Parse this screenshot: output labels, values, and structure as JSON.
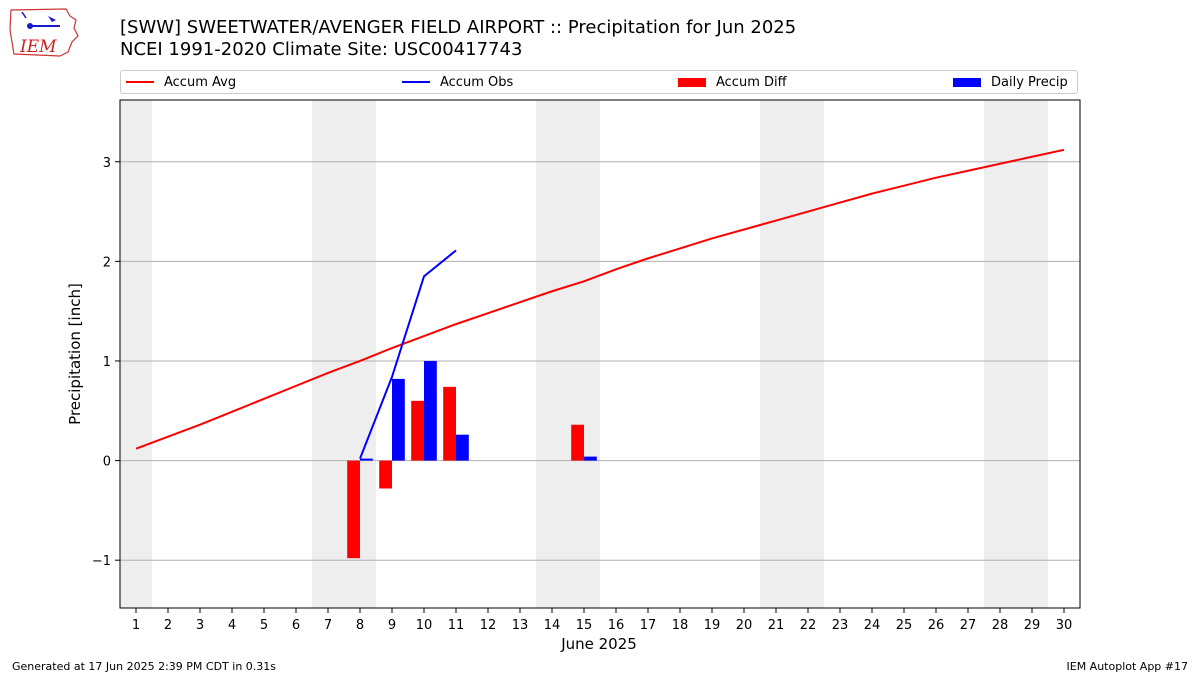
{
  "header": {
    "logo_text": "IEM",
    "title_line1": "[SWW] SWEETWATER/AVENGER FIELD AIRPORT :: Precipitation for Jun 2025",
    "title_line2": "NCEI 1991-2020 Climate Site: USC00417743"
  },
  "legend": [
    {
      "label": "Accum Avg",
      "kind": "line",
      "color": "#ff0000"
    },
    {
      "label": "Accum Obs",
      "kind": "line",
      "color": "#0000ff"
    },
    {
      "label": "Accum Diff",
      "kind": "patch",
      "color": "#ff0000"
    },
    {
      "label": "Daily Precip",
      "kind": "patch",
      "color": "#0000ff"
    }
  ],
  "chart_data": {
    "type": "bar",
    "title": "[SWW] SWEETWATER/AVENGER FIELD AIRPORT :: Precipitation for Jun 2025",
    "subtitle": "NCEI 1991-2020 Climate Site: USC00417743",
    "xlabel": "June 2025",
    "ylabel": "Precipitation [inch]",
    "x": [
      1,
      2,
      3,
      4,
      5,
      6,
      7,
      8,
      9,
      10,
      11,
      12,
      13,
      14,
      15,
      16,
      17,
      18,
      19,
      20,
      21,
      22,
      23,
      24,
      25,
      26,
      27,
      28,
      29,
      30
    ],
    "xlim": [
      0.5,
      30.5
    ],
    "ylim": [
      -1.48,
      3.62
    ],
    "yticks": [
      -1,
      0,
      1,
      2,
      3
    ],
    "grid": "y",
    "weekend_days": [
      1,
      7,
      8,
      14,
      15,
      21,
      22,
      28,
      29
    ],
    "series": [
      {
        "name": "Accum Avg",
        "kind": "line",
        "color": "#ff0000",
        "x": [
          1,
          2,
          3,
          4,
          5,
          6,
          7,
          8,
          9,
          10,
          11,
          12,
          13,
          14,
          15,
          16,
          17,
          18,
          19,
          20,
          21,
          22,
          23,
          24,
          25,
          26,
          27,
          28,
          29,
          30
        ],
        "values": [
          0.12,
          0.24,
          0.36,
          0.49,
          0.62,
          0.75,
          0.88,
          1.0,
          1.13,
          1.25,
          1.37,
          1.48,
          1.59,
          1.7,
          1.8,
          1.92,
          2.03,
          2.13,
          2.23,
          2.32,
          2.41,
          2.5,
          2.59,
          2.68,
          2.76,
          2.84,
          2.91,
          2.98,
          3.05,
          3.12
        ]
      },
      {
        "name": "Accum Obs",
        "kind": "line",
        "color": "#0000ff",
        "x": [
          8,
          9,
          10,
          11
        ],
        "values": [
          0.02,
          0.84,
          1.85,
          2.11
        ]
      },
      {
        "name": "Accum Diff",
        "kind": "bar",
        "color": "#ff0000",
        "x": [
          8,
          9,
          10,
          11,
          15
        ],
        "values": [
          -0.98,
          -0.28,
          0.6,
          0.74,
          0.36
        ]
      },
      {
        "name": "Daily Precip",
        "kind": "bar",
        "color": "#0000ff",
        "x": [
          8,
          9,
          10,
          11,
          15
        ],
        "values": [
          0.02,
          0.82,
          1.0,
          0.26,
          0.04
        ]
      }
    ]
  },
  "footer": {
    "left": "Generated at 17 Jun 2025 2:39 PM CDT in 0.31s",
    "right": "IEM Autoplot App #17"
  }
}
